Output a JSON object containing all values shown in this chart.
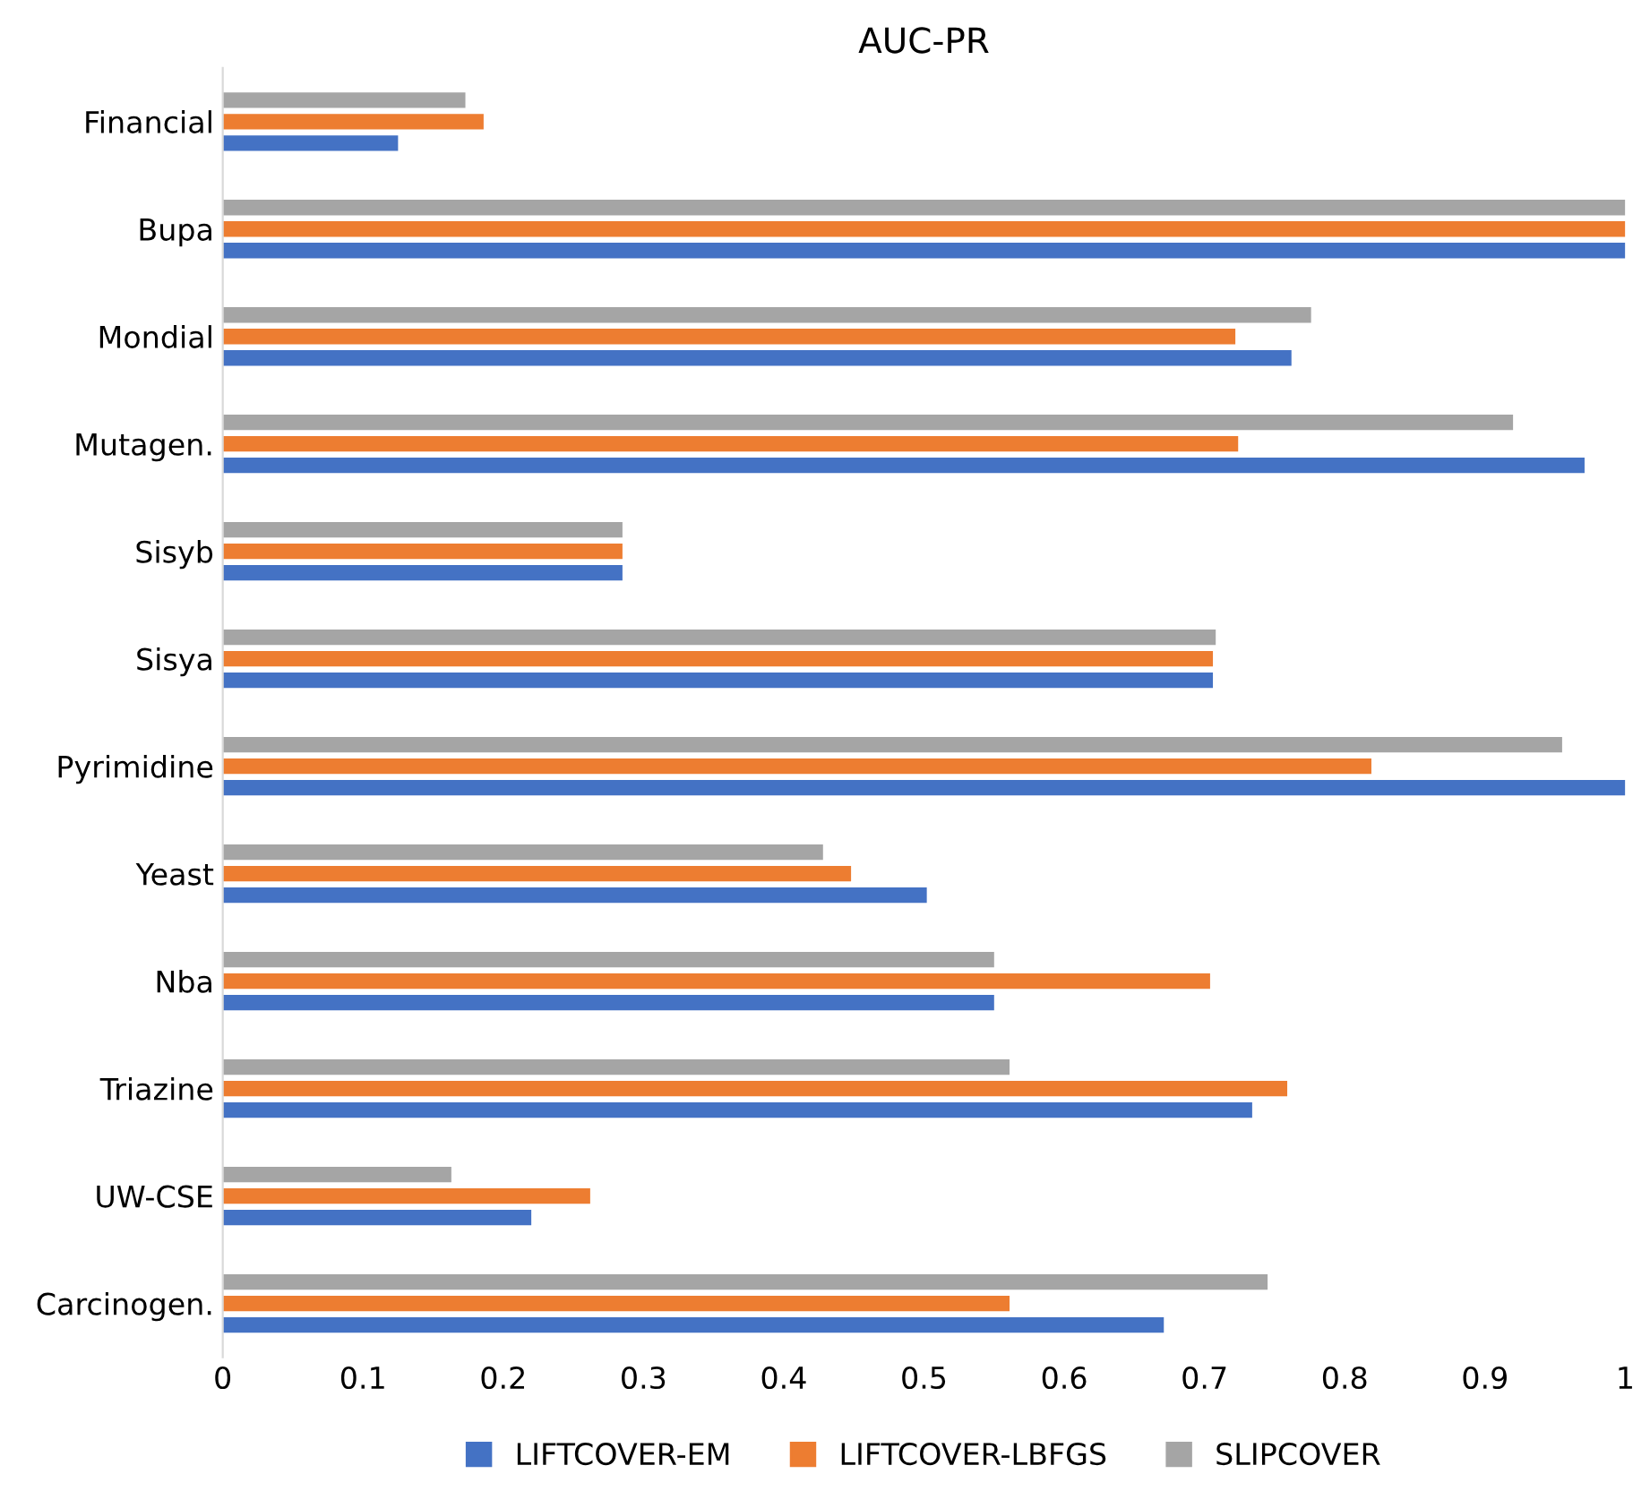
{
  "chart_data": {
    "type": "bar",
    "orientation": "horizontal",
    "title": "AUC-PR",
    "categories": [
      "Financial",
      "Bupa",
      "Mondial",
      "Mutagen.",
      "Sisyb",
      "Sisya",
      "Pyrimidine",
      "Yeast",
      "Nba",
      "Triazine",
      "UW-CSE",
      "Carcinogen."
    ],
    "series": [
      {
        "name": "LIFTCOVER-EM",
        "color": "#4472c4",
        "values": [
          0.125,
          1.0,
          0.762,
          0.971,
          0.285,
          0.706,
          1.0,
          0.502,
          0.55,
          0.734,
          0.22,
          0.671
        ]
      },
      {
        "name": "LIFTCOVER-LBFGS",
        "color": "#ed7d31",
        "values": [
          0.186,
          1.0,
          0.722,
          0.724,
          0.285,
          0.706,
          0.819,
          0.448,
          0.704,
          0.759,
          0.262,
          0.561
        ]
      },
      {
        "name": "SLIPCOVER",
        "color": "#a5a5a5",
        "values": [
          0.173,
          1.0,
          0.776,
          0.92,
          0.285,
          0.708,
          0.955,
          0.428,
          0.55,
          0.561,
          0.163,
          0.745
        ]
      }
    ],
    "xlim": [
      0,
      1
    ],
    "xticks": [
      0,
      0.1,
      0.2,
      0.3,
      0.4,
      0.5,
      0.6,
      0.7,
      0.8,
      0.9,
      1
    ],
    "legend": "bottom"
  }
}
